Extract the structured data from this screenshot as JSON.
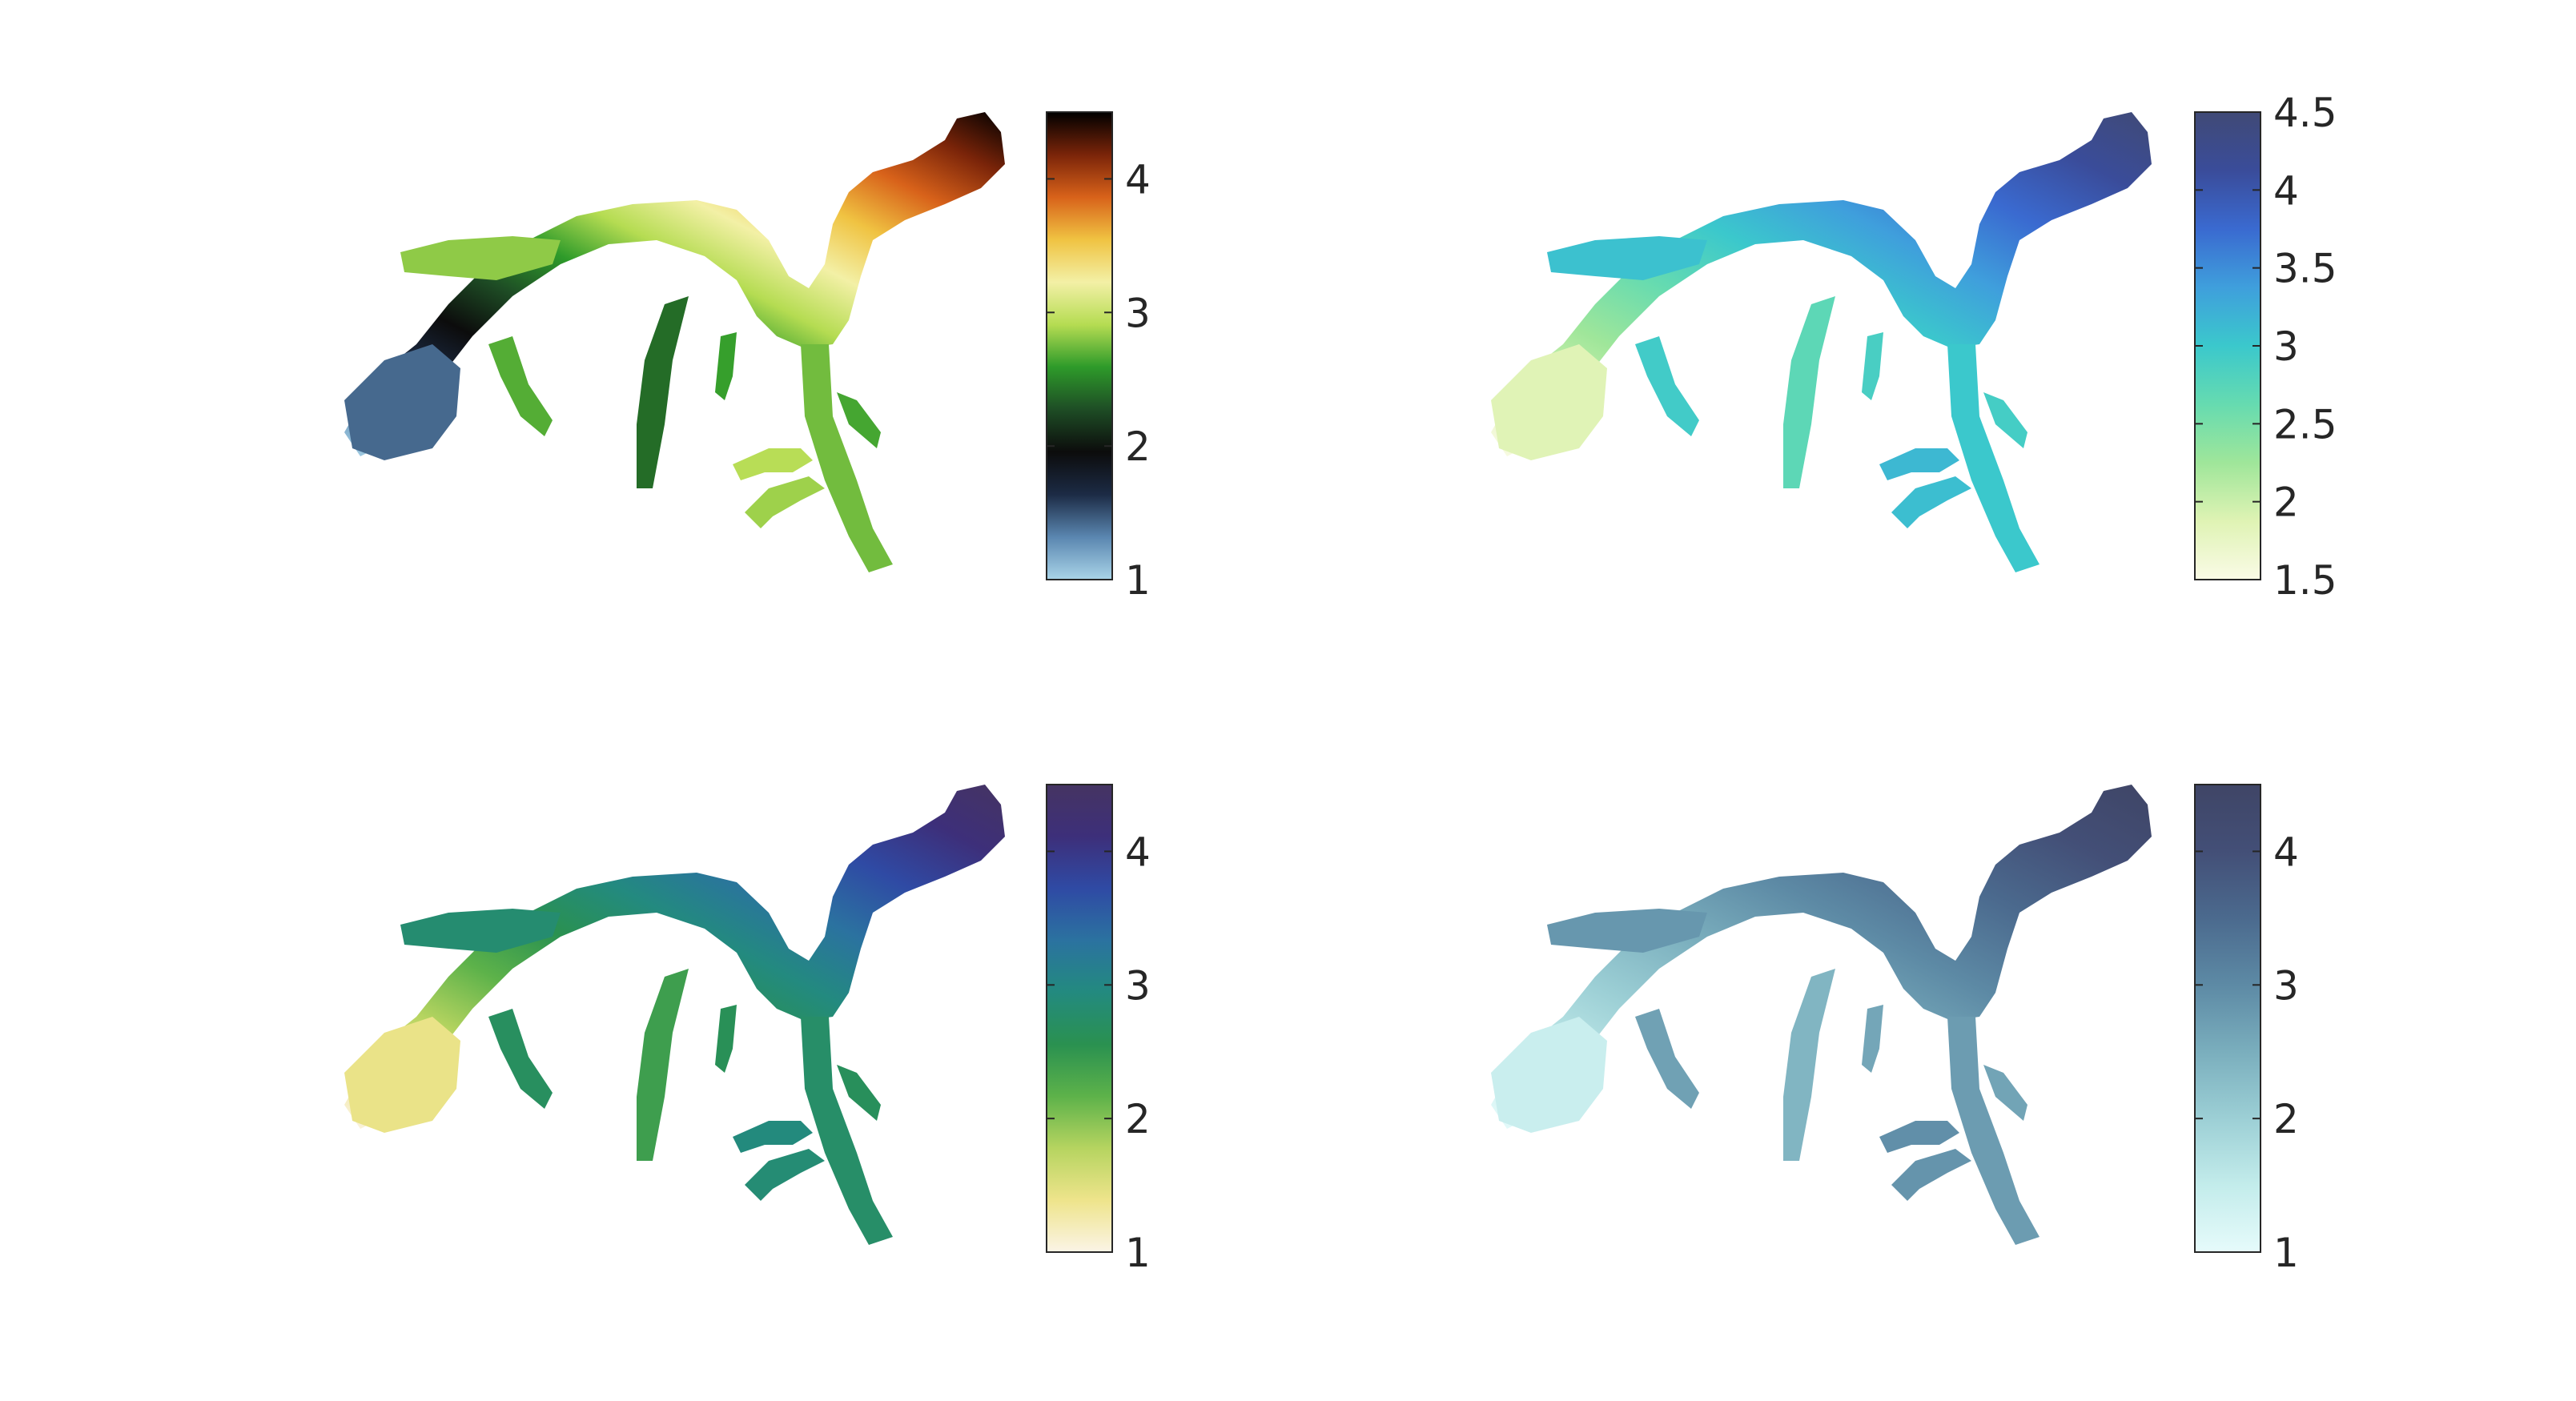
{
  "figure": {
    "description_free": true,
    "panels_count": 4
  },
  "chart_data": [
    {
      "type": "heatmap",
      "title": "",
      "colorbar": {
        "limits": [
          1,
          4.5
        ],
        "ticks": [
          1,
          2,
          3,
          4
        ],
        "tick_labels": [
          "1",
          "2",
          "3",
          "4"
        ],
        "colors": [
          "#a9d4e8",
          "#5a86b0",
          "#1c2b45",
          "#0c0c0c",
          "#1e4d25",
          "#2e9b2a",
          "#b5dc52",
          "#f3f0a6",
          "#f0c342",
          "#d8621a",
          "#7a2409",
          "#000000"
        ]
      }
    },
    {
      "type": "heatmap",
      "title": "",
      "colorbar": {
        "limits": [
          1.5,
          4.5
        ],
        "ticks": [
          1.5,
          2,
          2.5,
          3,
          3.5,
          4,
          4.5
        ],
        "tick_labels": [
          "1.5",
          "2",
          "2.5",
          "3",
          "3.5",
          "4",
          "4.5"
        ],
        "colors": [
          "#fafbe6",
          "#dff3b4",
          "#9fe69a",
          "#66dbb0",
          "#3bc8cc",
          "#3f9fdc",
          "#3a6ad0",
          "#3a4c9a",
          "#404a76"
        ]
      }
    },
    {
      "type": "heatmap",
      "title": "",
      "colorbar": {
        "limits": [
          1,
          4.5
        ],
        "ticks": [
          1,
          2,
          3,
          4
        ],
        "tick_labels": [
          "1",
          "2",
          "3",
          "4"
        ],
        "colors": [
          "#fbf4e6",
          "#eee48b",
          "#b6d460",
          "#5db24a",
          "#2a9150",
          "#238a7f",
          "#2b72a0",
          "#2f4aa4",
          "#3d2f7a",
          "#453462"
        ]
      }
    },
    {
      "type": "heatmap",
      "title": "",
      "colorbar": {
        "limits": [
          1,
          4.5
        ],
        "ticks": [
          1,
          2,
          3,
          4
        ],
        "tick_labels": [
          "1",
          "2",
          "3",
          "4"
        ],
        "colors": [
          "#e6fbfb",
          "#c3eceb",
          "#9ccfd5",
          "#7aaebd",
          "#5d8aa5",
          "#4b6a8e",
          "#434f77",
          "#3f4566"
        ]
      }
    }
  ]
}
